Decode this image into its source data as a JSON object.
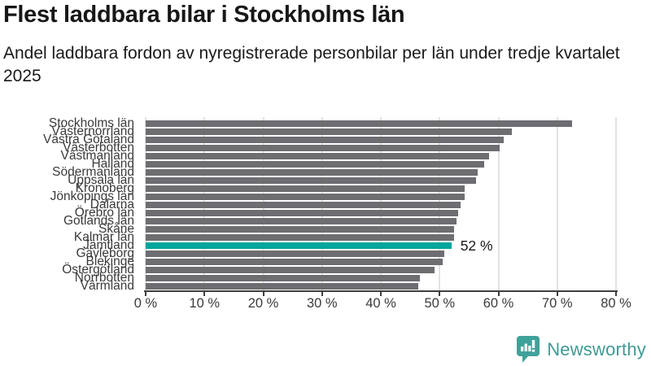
{
  "title": "Flest laddbara bilar i Stockholms län",
  "subtitle": "Andel laddbara fordon av nyregistrerade personbilar per län under tredje kvartalet 2025",
  "chart_data": {
    "type": "bar",
    "orientation": "horizontal",
    "title": "Flest laddbara bilar i Stockholms län",
    "subtitle": "Andel laddbara fordon av nyregistrerade personbilar per län under tredje kvartalet 2025",
    "categories": [
      "Stockholms län",
      "Västernorrland",
      "Västra Götaland",
      "Västerbotten",
      "Västmanland",
      "Halland",
      "Södermanland",
      "Uppsala län",
      "Kronoberg",
      "Jönköpings län",
      "Dalarna",
      "Örebro län",
      "Gotlands län",
      "Skåne",
      "Kalmar län",
      "Jämtland",
      "Gävleborg",
      "Blekinge",
      "Östergötland",
      "Norrbotten",
      "Värmland"
    ],
    "values": [
      72.5,
      62.3,
      60.9,
      60.2,
      58.4,
      57.6,
      56.5,
      56.2,
      54.3,
      54.2,
      53.6,
      53.2,
      52.9,
      52.4,
      52.4,
      52.0,
      50.8,
      50.5,
      49.1,
      46.6,
      46.4
    ],
    "unit": "%",
    "xlabel": "",
    "ylabel": "",
    "xlim": [
      0,
      80
    ],
    "x_tick_values": [
      0,
      10,
      20,
      30,
      40,
      50,
      60,
      70,
      80
    ],
    "x_tick_labels": [
      "0 %",
      "10 %",
      "20 %",
      "30 %",
      "40 %",
      "50 %",
      "60 %",
      "70 %",
      "80 %"
    ],
    "grid": "vertical-only",
    "legend": "none",
    "highlight": {
      "category": "Jämtland",
      "index": 15,
      "value": 52,
      "label": "52 %"
    }
  },
  "footer": {
    "brand": "Newsworthy"
  },
  "colors": {
    "bar": "#6d6d72",
    "highlight": "#00a69c",
    "axis": "#3f3f3f",
    "grid": "#e2e2e2",
    "title_text": "#171717",
    "label_text": "#3a3a3a",
    "brand": "#3e9a94"
  }
}
